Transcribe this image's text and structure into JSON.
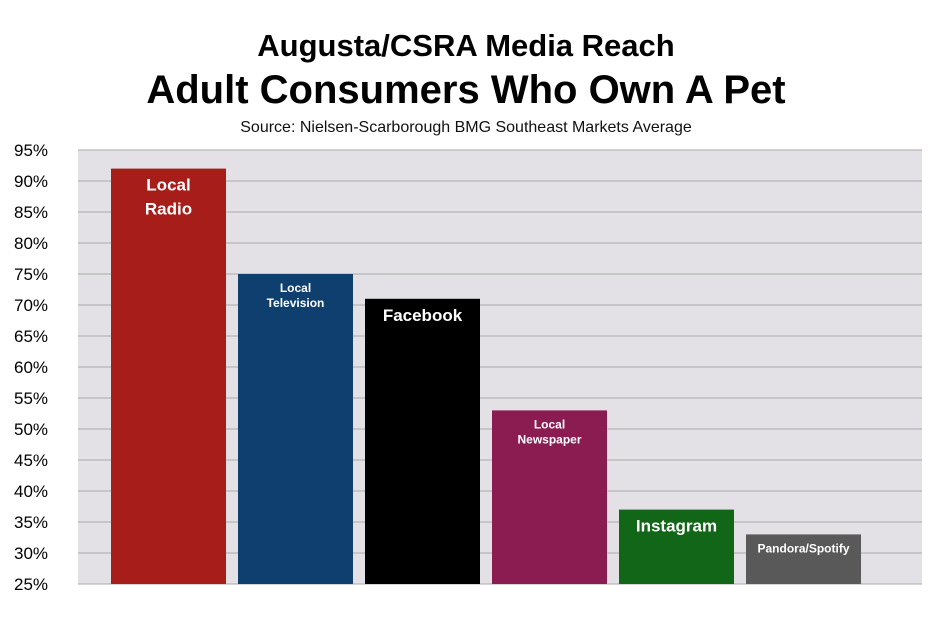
{
  "chart_data": {
    "type": "bar",
    "title": "Augusta/CSRA Media Reach",
    "subtitle": "Adult Consumers Who Own A Pet",
    "source": "Source: Nielsen-Scarborough BMG Southeast Markets Average",
    "categories": [
      "Local Radio",
      "Local Television",
      "Facebook",
      "Local Newspaper",
      "Instagram",
      "Pandora/Spotify"
    ],
    "bar_label_lines": [
      [
        "Local",
        "Radio"
      ],
      [
        "Local",
        "Television"
      ],
      [
        "Facebook"
      ],
      [
        "Local",
        "Newspaper"
      ],
      [
        "Instagram"
      ],
      [
        "Pandora/Spotify"
      ]
    ],
    "values": [
      92,
      75,
      71,
      53,
      37,
      33
    ],
    "colors": [
      "#a71d1a",
      "#0e3f6e",
      "#000000",
      "#8b1c52",
      "#116617",
      "#595959"
    ],
    "ylim": [
      25,
      95
    ],
    "yticks": [
      25,
      30,
      35,
      40,
      45,
      50,
      55,
      60,
      65,
      70,
      75,
      80,
      85,
      90,
      95
    ],
    "ytick_format": "percent",
    "xlabel": "",
    "ylabel": "",
    "grid": true,
    "plot_background": "#e3e1e6",
    "grid_color": "#a9a9a9",
    "legend": "none"
  }
}
